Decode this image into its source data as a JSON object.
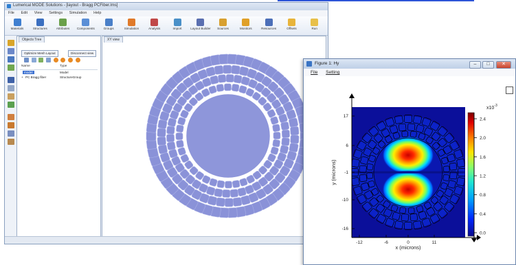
{
  "main_window": {
    "title": "Lumerical MODE Solutions - [layout - Bragg PCFiber.lms]",
    "menu": [
      "File",
      "Edit",
      "View",
      "Settings",
      "Simulation",
      "Help"
    ],
    "ribbon": [
      {
        "label": "Materials",
        "color": "#3f7fd0"
      },
      {
        "label": "Structures",
        "color": "#3b6fc0"
      },
      {
        "label": "Attributes",
        "color": "#6aa04a"
      },
      {
        "label": "Components",
        "color": "#5b8fd6"
      },
      {
        "label": "Groups",
        "color": "#4a7fc8"
      },
      {
        "label": "Simulation",
        "color": "#e07a2a"
      },
      {
        "label": "Analysis",
        "color": "#c04848"
      },
      {
        "label": "Import",
        "color": "#4a90c8"
      },
      {
        "label": "Layout Builder",
        "color": "#5a6fb0"
      },
      {
        "label": "Sources",
        "color": "#d8a030"
      },
      {
        "label": "Monitors",
        "color": "#e0a028"
      },
      {
        "label": "Resources",
        "color": "#4c6fb8"
      },
      {
        "label": "Offsets",
        "color": "#e8b43a"
      },
      {
        "label": "Run",
        "color": "#e8c04a"
      }
    ],
    "tree_tab": "Objects Tree",
    "canvas_tab": "XY view",
    "optimize_btn": "Optimize Mesh Layout",
    "disconnect_btn": "Disconnect view",
    "tree_columns": [
      "Name",
      "Type"
    ],
    "tree_rows": [
      {
        "name": "model",
        "type": "Model"
      },
      {
        "name": "PC Bragg fiber",
        "type": "StructureGroup"
      }
    ]
  },
  "figure_window": {
    "title": "Figure 1: Hy",
    "menu": [
      "File",
      "Setting"
    ],
    "window_buttons": [
      "minimize",
      "maximize",
      "close"
    ],
    "xlabel": "x (microns)",
    "ylabel": "y (microns)",
    "x_ticks": [
      "-12",
      "-6",
      "0",
      "11"
    ],
    "y_ticks": [
      "17",
      "6",
      "-1",
      "-10",
      "-16"
    ],
    "colorbar_ticks": [
      "2.4",
      "2.0",
      "1.6",
      "1.2",
      "0.8",
      "0.4",
      "0.0"
    ],
    "colorbar_exponent": "x10",
    "colorbar_exponent_power": "-3",
    "colormap": [
      "#0a0a8c",
      "#0026ff",
      "#00a2ff",
      "#1fe6d2",
      "#8aff6a",
      "#ffe600",
      "#ff7a00",
      "#e00000",
      "#7a0000"
    ]
  }
}
